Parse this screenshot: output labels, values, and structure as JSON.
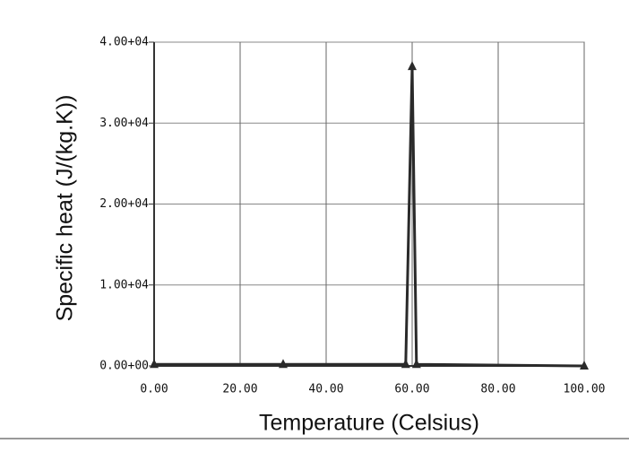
{
  "chart_data": {
    "type": "line",
    "xlabel": "Temperature (Celsius)",
    "ylabel": "Specific heat (J/(kg.K))",
    "x": [
      0,
      30,
      58.5,
      60,
      61,
      100
    ],
    "series": [
      {
        "name": "Specific heat",
        "color": "#2a2a2a",
        "values": [
          200,
          200,
          200,
          37000,
          200,
          0
        ]
      }
    ],
    "xlim": [
      0,
      100
    ],
    "xticks": [
      {
        "value": 0,
        "label": "0.00"
      },
      {
        "value": 20,
        "label": "20.00"
      },
      {
        "value": 40,
        "label": "40.00"
      },
      {
        "value": 60,
        "label": "60.00"
      },
      {
        "value": 80,
        "label": "80.00"
      },
      {
        "value": 100,
        "label": "100.00"
      }
    ],
    "ylim": [
      0,
      40000
    ],
    "yticks": [
      {
        "value": 0,
        "label": "0.00+00"
      },
      {
        "value": 10000,
        "label": "1.00+04"
      },
      {
        "value": 20000,
        "label": "2.00+04"
      },
      {
        "value": 30000,
        "label": "3.00+04"
      },
      {
        "value": 40000,
        "label": "4.00+04"
      }
    ],
    "grid": true
  }
}
